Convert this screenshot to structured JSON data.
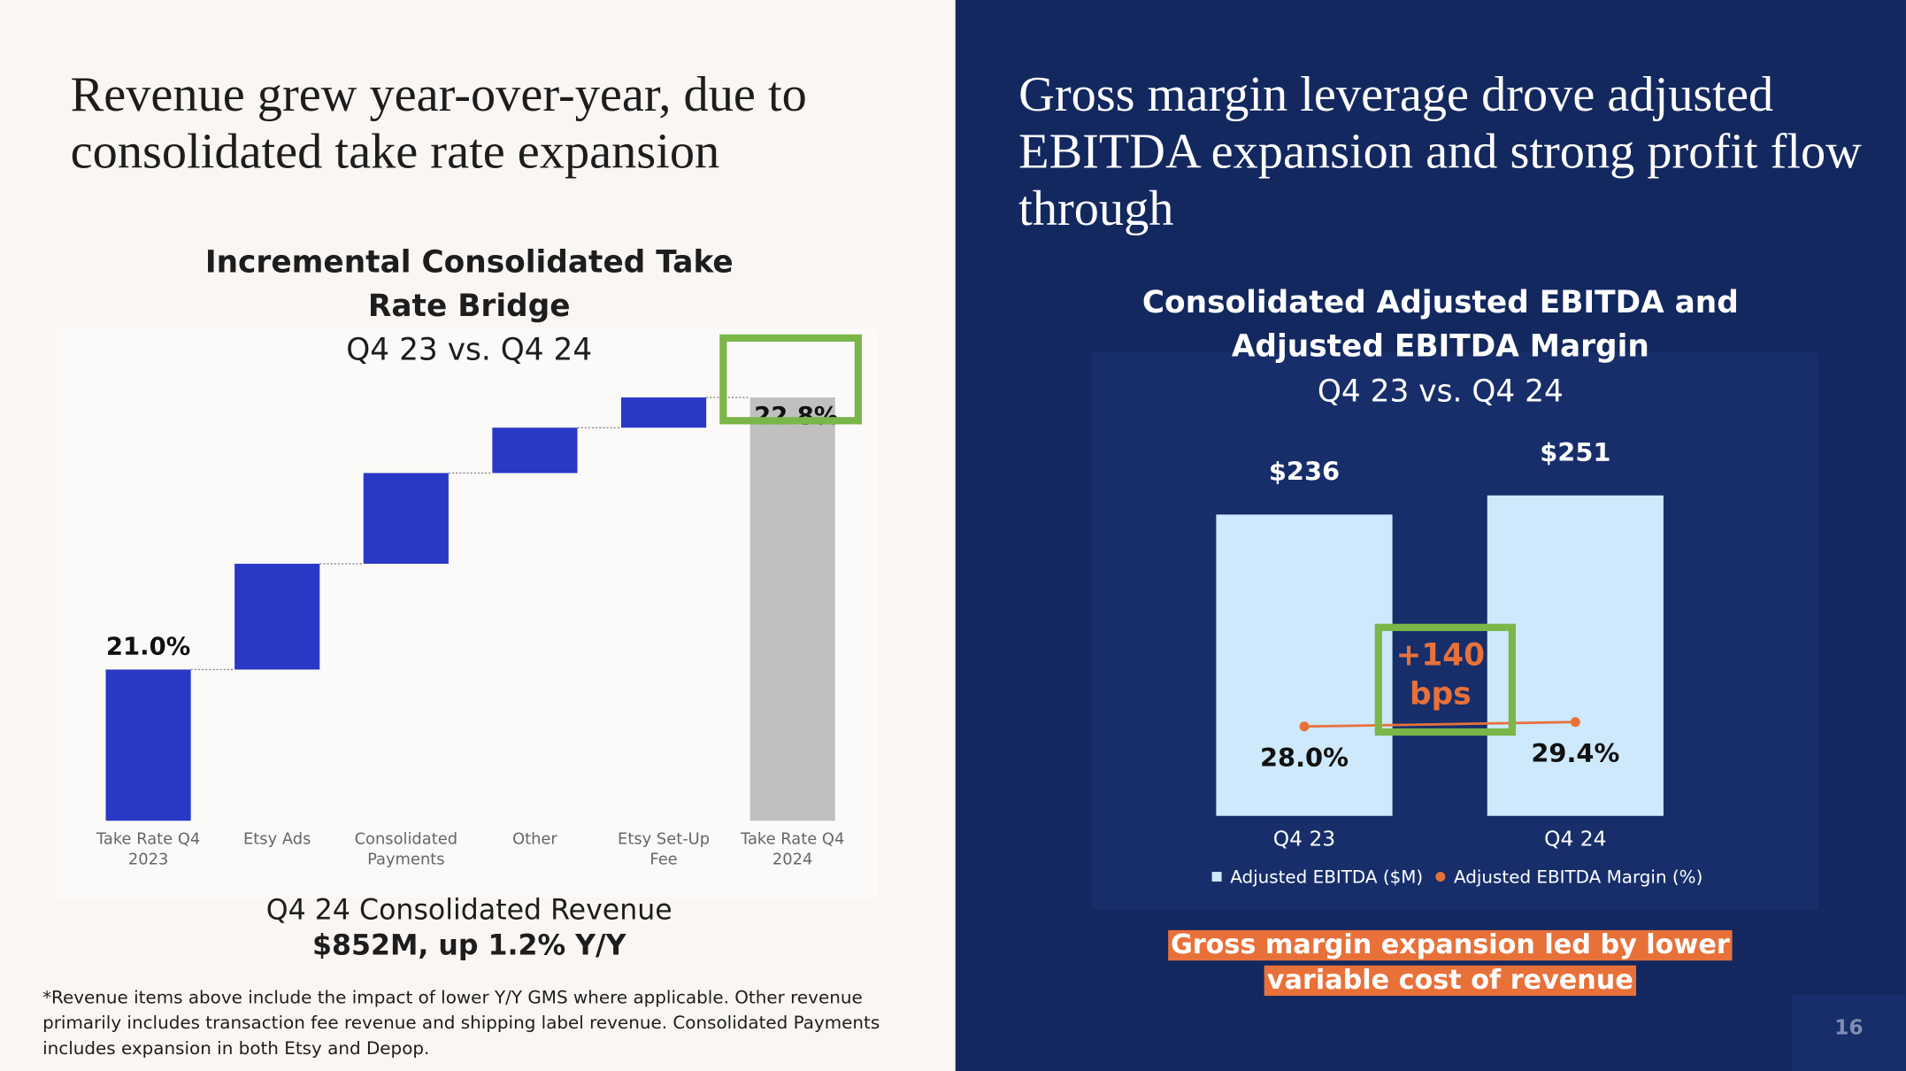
{
  "headlines": [
    "Revenue grew year-over-year, due to consolidated take rate expansion",
    "Gross margin leverage drove adjusted EBITDA expansion and strong profit flow through"
  ],
  "chart_data": [
    {
      "type": "waterfall",
      "title": "Incremental Consolidated Take Rate Bridge",
      "subtitle": "Q4 23 vs. Q4 24",
      "categories": [
        "Take Rate Q4 2023",
        "Etsy Ads",
        "Consolidated Payments",
        "Other",
        "Etsy Set-Up Fee",
        "Take Rate Q4 2024"
      ],
      "values": [
        21.0,
        0.7,
        0.6,
        0.3,
        0.2,
        22.8
      ],
      "value_labels": [
        "21.0%",
        null,
        null,
        null,
        null,
        "22.8%"
      ],
      "measures": [
        "absolute",
        "relative",
        "relative",
        "relative",
        "relative",
        "total"
      ],
      "color": "#2a38c6",
      "total_color": "#c0c0c0",
      "ylim": [
        20,
        23
      ]
    },
    {
      "type": "bar",
      "title": "Consolidated Adjusted EBITDA and Adjusted EBITDA Margin",
      "subtitle": "Q4 23 vs. Q4 24",
      "categories": [
        "Q4 23",
        "Q4 24"
      ],
      "series": [
        {
          "name": "Adjusted EBITDA ($M)",
          "type": "bar",
          "color": "#cde9fb",
          "values": [
            236,
            251
          ],
          "value_labels": [
            "$236",
            "$251"
          ]
        },
        {
          "name": "Adjusted EBITDA Margin (%)",
          "type": "line",
          "axis": "y2",
          "color": "#e8713a",
          "values": [
            28.0,
            29.4
          ],
          "value_labels": [
            "28.0%",
            "29.4%"
          ]
        }
      ],
      "annotation": [
        "+140",
        "bps"
      ],
      "ylim": [
        0,
        300
      ],
      "y2lim": [
        0,
        120
      ],
      "legend": "bottom"
    }
  ],
  "caption": [
    "Q4 24 Consolidated Revenue",
    "$852M, up 1.2% Y/Y"
  ],
  "footnote": "*Revenue items above include the impact of lower Y/Y GMS where applicable. Other revenue primarily includes transaction fee revenue and shipping label revenue. Consolidated Payments includes expansion in both Etsy and Depop.",
  "callout": "Gross margin expansion led by lower variable cost of revenue",
  "page_number": "16"
}
